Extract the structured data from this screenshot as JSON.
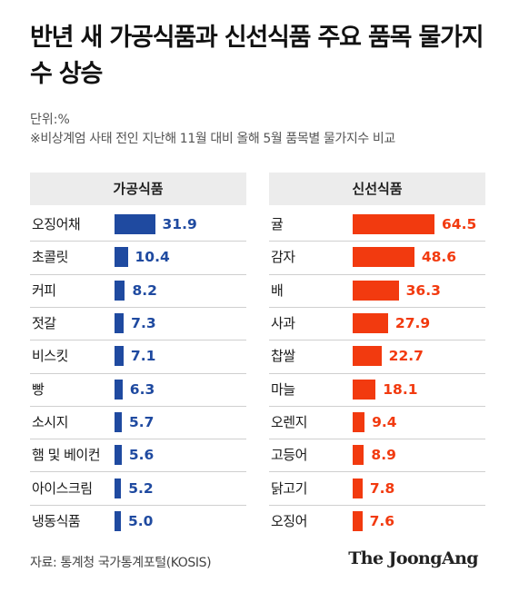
{
  "title": "반년 새 가공식품과 신선식품 주요 품목 물가지수 상승",
  "unit": "단위:%",
  "note": "※비상계엄 사태 전인 지난해 11월 대비 올해 5월 품목별 물가지수 비교",
  "source": "자료: 통계청 국가통계포털(KOSIS)",
  "logo": "The JoongAng",
  "colors": {
    "processed": "#1f4aa0",
    "fresh": "#f23a0f",
    "header_bg": "#ececec"
  },
  "chart_data": [
    {
      "type": "bar",
      "title": "가공식품",
      "categories": [
        "오징어채",
        "초콜릿",
        "커피",
        "젓갈",
        "비스킷",
        "빵",
        "소시지",
        "햄 및 베이컨",
        "아이스크림",
        "냉동식품"
      ],
      "values": [
        31.9,
        10.4,
        8.2,
        7.3,
        7.1,
        6.3,
        5.7,
        5.6,
        5.2,
        5.0
      ],
      "value_labels": [
        "31.9",
        "10.4",
        "8.2",
        "7.3",
        "7.1",
        "6.3",
        "5.7",
        "5.6",
        "5.2",
        "5.0"
      ],
      "xlim": [
        0,
        70
      ]
    },
    {
      "type": "bar",
      "title": "신선식품",
      "categories": [
        "귤",
        "감자",
        "배",
        "사과",
        "찹쌀",
        "마늘",
        "오렌지",
        "고등어",
        "닭고기",
        "오징어"
      ],
      "values": [
        64.5,
        48.6,
        36.3,
        27.9,
        22.7,
        18.1,
        9.4,
        8.9,
        7.8,
        7.6
      ],
      "value_labels": [
        "64.5",
        "48.6",
        "36.3",
        "27.9",
        "22.7",
        "18.1",
        "9.4",
        "8.9",
        "7.8",
        "7.6"
      ],
      "xlim": [
        0,
        70
      ]
    }
  ]
}
